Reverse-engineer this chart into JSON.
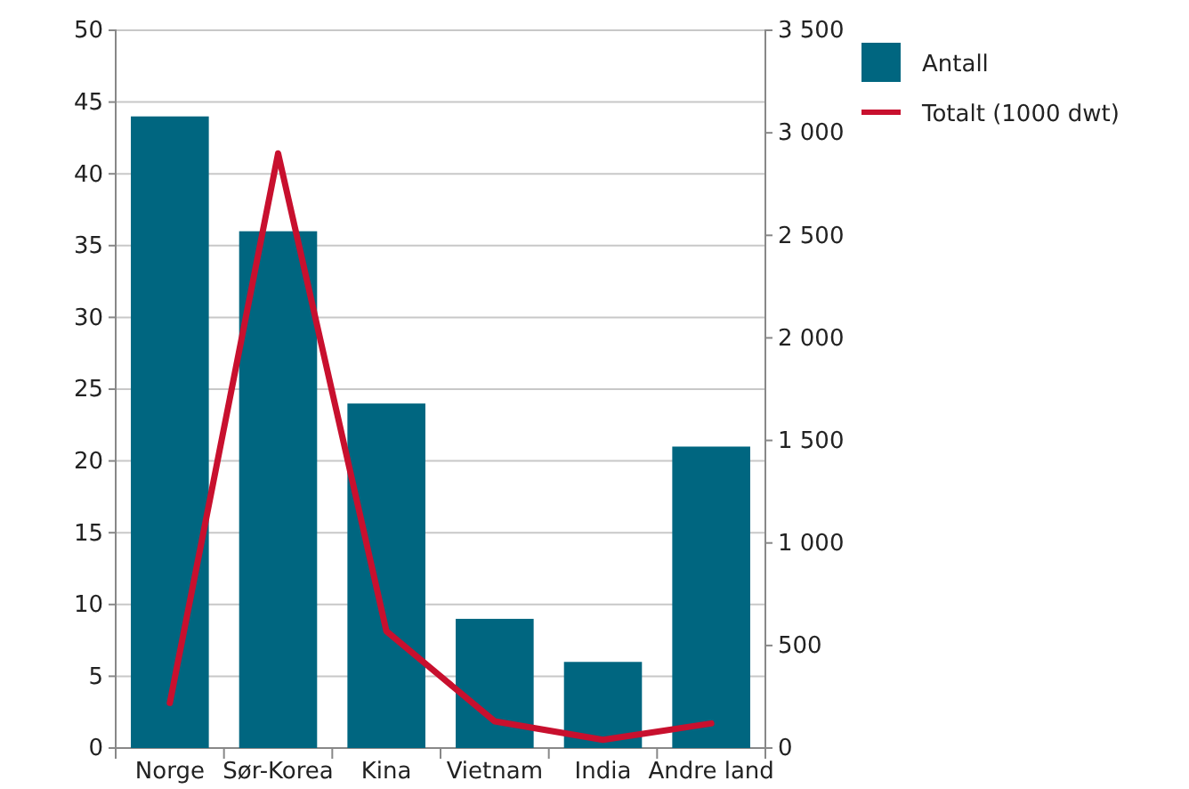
{
  "chart_data": {
    "type": "bar",
    "categories": [
      "Norge",
      "Sør-Korea",
      "Kina",
      "Vietnam",
      "India",
      "Andre land"
    ],
    "series": [
      {
        "name": "Antall",
        "color": "#006680",
        "values": [
          44,
          36,
          24,
          9,
          6,
          21
        ]
      },
      {
        "name": "Totalt (1000 dwt)",
        "color": "#c8102e",
        "type": "line",
        "axis": "y2",
        "values": [
          220,
          2900,
          570,
          130,
          40,
          120
        ]
      }
    ],
    "ylim": [
      0,
      50
    ],
    "yticks": [
      0,
      5,
      10,
      15,
      20,
      25,
      30,
      35,
      40,
      45,
      50
    ],
    "y2lim": [
      0,
      3500
    ],
    "y2ticks": [
      0,
      500,
      {
        "value": 1000,
        "label": "1 000"
      },
      {
        "value": 1500,
        "label": "1 500"
      },
      {
        "value": 2000,
        "label": "2 000"
      },
      {
        "value": 2500,
        "label": "2 500"
      },
      {
        "value": 3000,
        "label": "3 000"
      },
      {
        "value": 3500,
        "label": "3 500"
      }
    ],
    "grid": "y",
    "legend": "right",
    "marker": "none",
    "line_style": "solid"
  }
}
